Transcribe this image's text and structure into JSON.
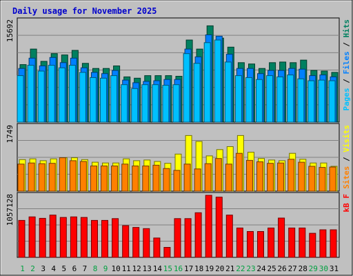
{
  "chart_data": {
    "type": "bar",
    "title": "Daily usage for November 2025",
    "days": [
      "1",
      "2",
      "3",
      "4",
      "5",
      "6",
      "7",
      "8",
      "9",
      "10",
      "11",
      "12",
      "13",
      "14",
      "15",
      "16",
      "17",
      "18",
      "19",
      "20",
      "21",
      "22",
      "23",
      "24",
      "25",
      "26",
      "27",
      "28",
      "29",
      "30",
      "31"
    ],
    "weekend_days": [
      1,
      2,
      8,
      9,
      15,
      16,
      22,
      23,
      29,
      30
    ],
    "panels": [
      {
        "id": "hits-files-pages",
        "ymax_label": "15692",
        "ymax": 15692,
        "legend": [
          {
            "text": "Pages",
            "color": "#00c0ff"
          },
          {
            "text": " / ",
            "color": "#000000"
          },
          {
            "text": "Files",
            "color": "#0080ff"
          },
          {
            "text": " / ",
            "color": "#000000"
          },
          {
            "text": "Hits",
            "color": "#008060"
          }
        ],
        "series": [
          {
            "name": "Hits",
            "color": "#008060",
            "values": [
              8900,
              11300,
              9400,
              10600,
              10400,
              11100,
              9100,
              8300,
              8300,
              8700,
              7000,
              6800,
              7200,
              7200,
              7200,
              7100,
              12700,
              11300,
              14900,
              13000,
              11600,
              9200,
              9000,
              8300,
              9200,
              9300,
              9200,
              9600,
              8000,
              7900,
              7700
            ]
          },
          {
            "name": "Files",
            "color": "#0080ff",
            "values": [
              8300,
              9900,
              8700,
              10000,
              9200,
              9900,
              8400,
              7700,
              7500,
              8000,
              6500,
              6100,
              6300,
              6400,
              6600,
              6600,
              11300,
              10100,
              13500,
              13300,
              10500,
              8300,
              8300,
              7500,
              8000,
              8000,
              8300,
              8200,
              7200,
              7300,
              7000
            ]
          },
          {
            "name": "Pages",
            "color": "#00c0ff",
            "values": [
              7200,
              8800,
              7900,
              8800,
              8400,
              8800,
              7700,
              6900,
              6800,
              7200,
              5800,
              5200,
              5800,
              5800,
              5700,
              5800,
              10600,
              9100,
              12300,
              12700,
              9300,
              7200,
              6900,
              6600,
              7200,
              7000,
              7300,
              6700,
              6400,
              6500,
              6400
            ]
          }
        ]
      },
      {
        "id": "visits-sites",
        "ymax_label": "1749",
        "ymax": 1749,
        "legend": [
          {
            "text": "Sites",
            "color": "#ff8000"
          },
          {
            "text": " / ",
            "color": "#000000"
          },
          {
            "text": "Visits",
            "color": "#ffff00"
          }
        ],
        "series": [
          {
            "name": "Visits",
            "color": "#ffff00",
            "values": [
              850,
              870,
              820,
              870,
              900,
              900,
              850,
              780,
              760,
              760,
              870,
              820,
              840,
              800,
              750,
              1000,
              1500,
              1340,
              950,
              1120,
              1200,
              1500,
              1050,
              880,
              840,
              820,
              1020,
              860,
              760,
              760,
              670
            ]
          },
          {
            "name": "Sites",
            "color": "#ff8000",
            "values": [
              730,
              760,
              740,
              750,
              900,
              820,
              800,
              680,
              680,
              680,
              730,
              680,
              680,
              700,
              610,
              560,
              730,
              600,
              740,
              880,
              730,
              1020,
              830,
              790,
              750,
              760,
              860,
              780,
              670,
              640,
              650
            ]
          }
        ]
      },
      {
        "id": "kbytes",
        "ymax_label": "1057128",
        "ymax": 1057128,
        "legend": [
          {
            "text": "kB F",
            "color": "#ff0000"
          }
        ],
        "series": [
          {
            "name": "kB F",
            "color": "#ff0000",
            "values": [
              630000,
              690000,
              665000,
              720000,
              680000,
              690000,
              680000,
              630000,
              630000,
              660000,
              540000,
              510000,
              490000,
              330000,
              170000,
              660000,
              660000,
              760000,
              1057128,
              1025000,
              720000,
              500000,
              440000,
              440000,
              500000,
              670000,
              500000,
              500000,
              410000,
              470000,
              470000
            ]
          }
        ]
      }
    ]
  }
}
